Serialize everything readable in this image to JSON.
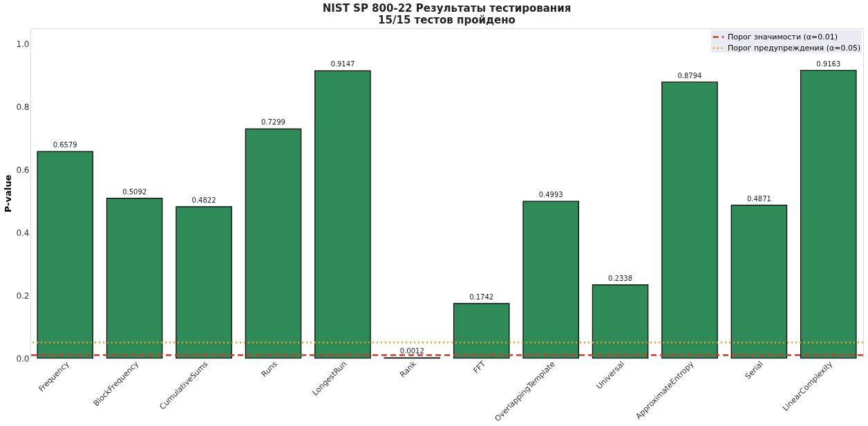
{
  "chart_data": {
    "type": "bar",
    "title": "NIST SP 800-22 Результаты тестирования\n15/15 тестов пройдено",
    "ylabel": "P-value",
    "categories": [
      "Frequency",
      "BlockFrequency",
      "CumulativeSums",
      "Runs",
      "LongestRun",
      "Rank",
      "FFT",
      "OverlappingTemplate",
      "Universal",
      "ApproximateEntropy",
      "Serial",
      "LinearComplexity"
    ],
    "values": [
      0.6579,
      0.5092,
      0.4822,
      0.7299,
      0.9147,
      0.0012,
      0.1742,
      0.4993,
      0.2338,
      0.8794,
      0.4871,
      0.9163
    ],
    "color": "#2e8b57",
    "ylim": [
      0,
      1.05
    ],
    "yticks": [
      {
        "value": 0,
        "label": "0.0"
      },
      {
        "value": 0.2,
        "label": "0.2"
      },
      {
        "value": 0.4,
        "label": "0.4"
      },
      {
        "value": 0.6,
        "label": "0.6"
      },
      {
        "value": 0.8,
        "label": "0.8"
      },
      {
        "value": 1.0,
        "label": "1.0"
      }
    ],
    "ref_lines": [
      {
        "axis": "y",
        "value": 0.01,
        "label": "Порог значимости (α=0.01)",
        "color": "#d0392b",
        "line_style": "dashed"
      },
      {
        "axis": "y",
        "value": 0.05,
        "label": "Порог предупреждения (α=0.05)",
        "color": "#f39c12",
        "line_style": "dotted"
      }
    ],
    "data_labels": true,
    "grid": true,
    "legend": "top right"
  }
}
